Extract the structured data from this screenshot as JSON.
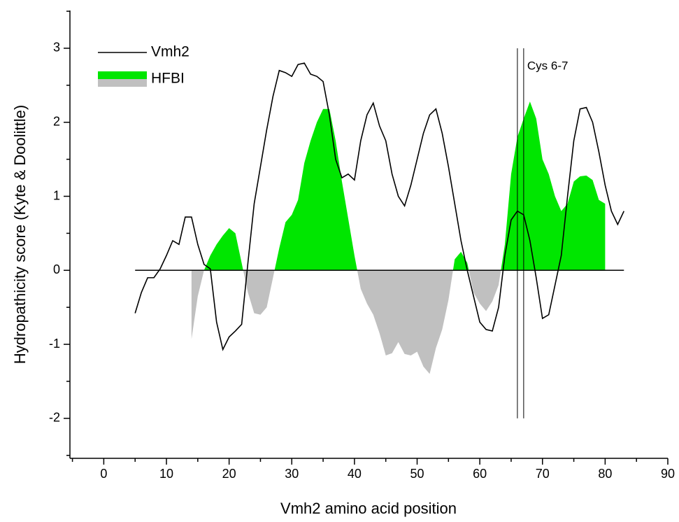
{
  "chart_data": {
    "type": "line",
    "x_label": "Vmh2 amino acid position",
    "y_label": "Hydropathicity score (Kyte & Doolittle)",
    "xlim": [
      -5.4,
      90
    ],
    "ylim": [
      -2.54,
      3.51
    ],
    "xticks": [
      0,
      10,
      20,
      30,
      40,
      50,
      60,
      70,
      80,
      90
    ],
    "yticks": [
      -2,
      -1,
      0,
      1,
      2,
      3
    ],
    "xminorticks": [
      -5,
      5,
      15,
      25,
      35,
      45,
      55,
      65,
      75,
      85
    ],
    "yminorticks": [
      -2.5,
      -1.5,
      -0.5,
      0.5,
      1.5,
      2.5,
      3.5
    ],
    "legend": "top-left",
    "series": [
      {
        "name": "Vmh2",
        "type": "line",
        "color": "#000000",
        "x": [
          5,
          6,
          7,
          8,
          9,
          10,
          11,
          12,
          13,
          14,
          15,
          16,
          17,
          18,
          19,
          20,
          21,
          22,
          23,
          24,
          25,
          26,
          27,
          28,
          29,
          30,
          31,
          32,
          33,
          34,
          35,
          36,
          37,
          38,
          39,
          40,
          41,
          42,
          43,
          44,
          45,
          46,
          47,
          48,
          49,
          50,
          51,
          52,
          53,
          54,
          55,
          56,
          57,
          58,
          59,
          60,
          61,
          62,
          63,
          64,
          65,
          66,
          67,
          68,
          69,
          70,
          71,
          72,
          73,
          74,
          75,
          76,
          77,
          78,
          79,
          80,
          81,
          82,
          83
        ],
        "values": [
          -0.58,
          -0.3,
          -0.1,
          -0.1,
          0.02,
          0.2,
          0.4,
          0.35,
          0.72,
          0.72,
          0.35,
          0.08,
          0.02,
          -0.7,
          -1.07,
          -0.9,
          -0.82,
          -0.73,
          0.1,
          0.9,
          1.4,
          1.9,
          2.35,
          2.7,
          2.67,
          2.62,
          2.78,
          2.8,
          2.65,
          2.62,
          2.55,
          2.1,
          1.5,
          1.25,
          1.3,
          1.22,
          1.75,
          2.1,
          2.26,
          1.95,
          1.75,
          1.3,
          1.0,
          0.87,
          1.15,
          1.5,
          1.85,
          2.1,
          2.18,
          1.85,
          1.4,
          0.9,
          0.4,
          0.0,
          -0.35,
          -0.7,
          -0.8,
          -0.82,
          -0.5,
          0.2,
          0.68,
          0.8,
          0.75,
          0.4,
          -0.1,
          -0.65,
          -0.6,
          -0.2,
          0.2,
          1.0,
          1.75,
          2.18,
          2.2,
          2.0,
          1.6,
          1.15,
          0.8,
          0.62,
          0.8
        ]
      },
      {
        "name": "HFBI",
        "type": "area",
        "color": "#00e600",
        "negative_color": "#c0c0c0",
        "x": [
          14,
          15,
          16,
          17,
          18,
          19,
          20,
          21,
          22,
          23,
          24,
          25,
          26,
          27,
          28,
          29,
          30,
          31,
          32,
          33,
          34,
          35,
          36,
          37,
          38,
          39,
          40,
          41,
          42,
          43,
          44,
          45,
          46,
          47,
          48,
          49,
          50,
          51,
          52,
          53,
          54,
          55,
          56,
          57,
          58,
          59,
          60,
          61,
          62,
          63,
          64,
          65,
          66,
          67,
          68,
          69,
          70,
          71,
          72,
          73,
          74,
          75,
          76,
          77,
          78,
          79,
          80
        ],
        "values": [
          -0.93,
          -0.35,
          0.0,
          0.2,
          0.35,
          0.47,
          0.57,
          0.5,
          0.1,
          -0.3,
          -0.58,
          -0.6,
          -0.5,
          -0.1,
          0.3,
          0.65,
          0.75,
          0.95,
          1.45,
          1.75,
          2.0,
          2.18,
          2.18,
          1.75,
          1.2,
          0.7,
          0.2,
          -0.25,
          -0.45,
          -0.6,
          -0.85,
          -1.15,
          -1.12,
          -0.97,
          -1.13,
          -1.15,
          -1.1,
          -1.3,
          -1.4,
          -1.05,
          -0.8,
          -0.4,
          0.15,
          0.25,
          0.1,
          -0.3,
          -0.45,
          -0.55,
          -0.42,
          -0.2,
          0.35,
          1.3,
          1.8,
          2.05,
          2.28,
          2.05,
          1.5,
          1.3,
          1.0,
          0.8,
          0.9,
          1.2,
          1.27,
          1.28,
          1.22,
          0.95,
          0.9
        ]
      }
    ],
    "vlines": [
      66,
      67
    ],
    "vline_range": [
      -2,
      3
    ],
    "annotation": "Cys 6-7"
  }
}
